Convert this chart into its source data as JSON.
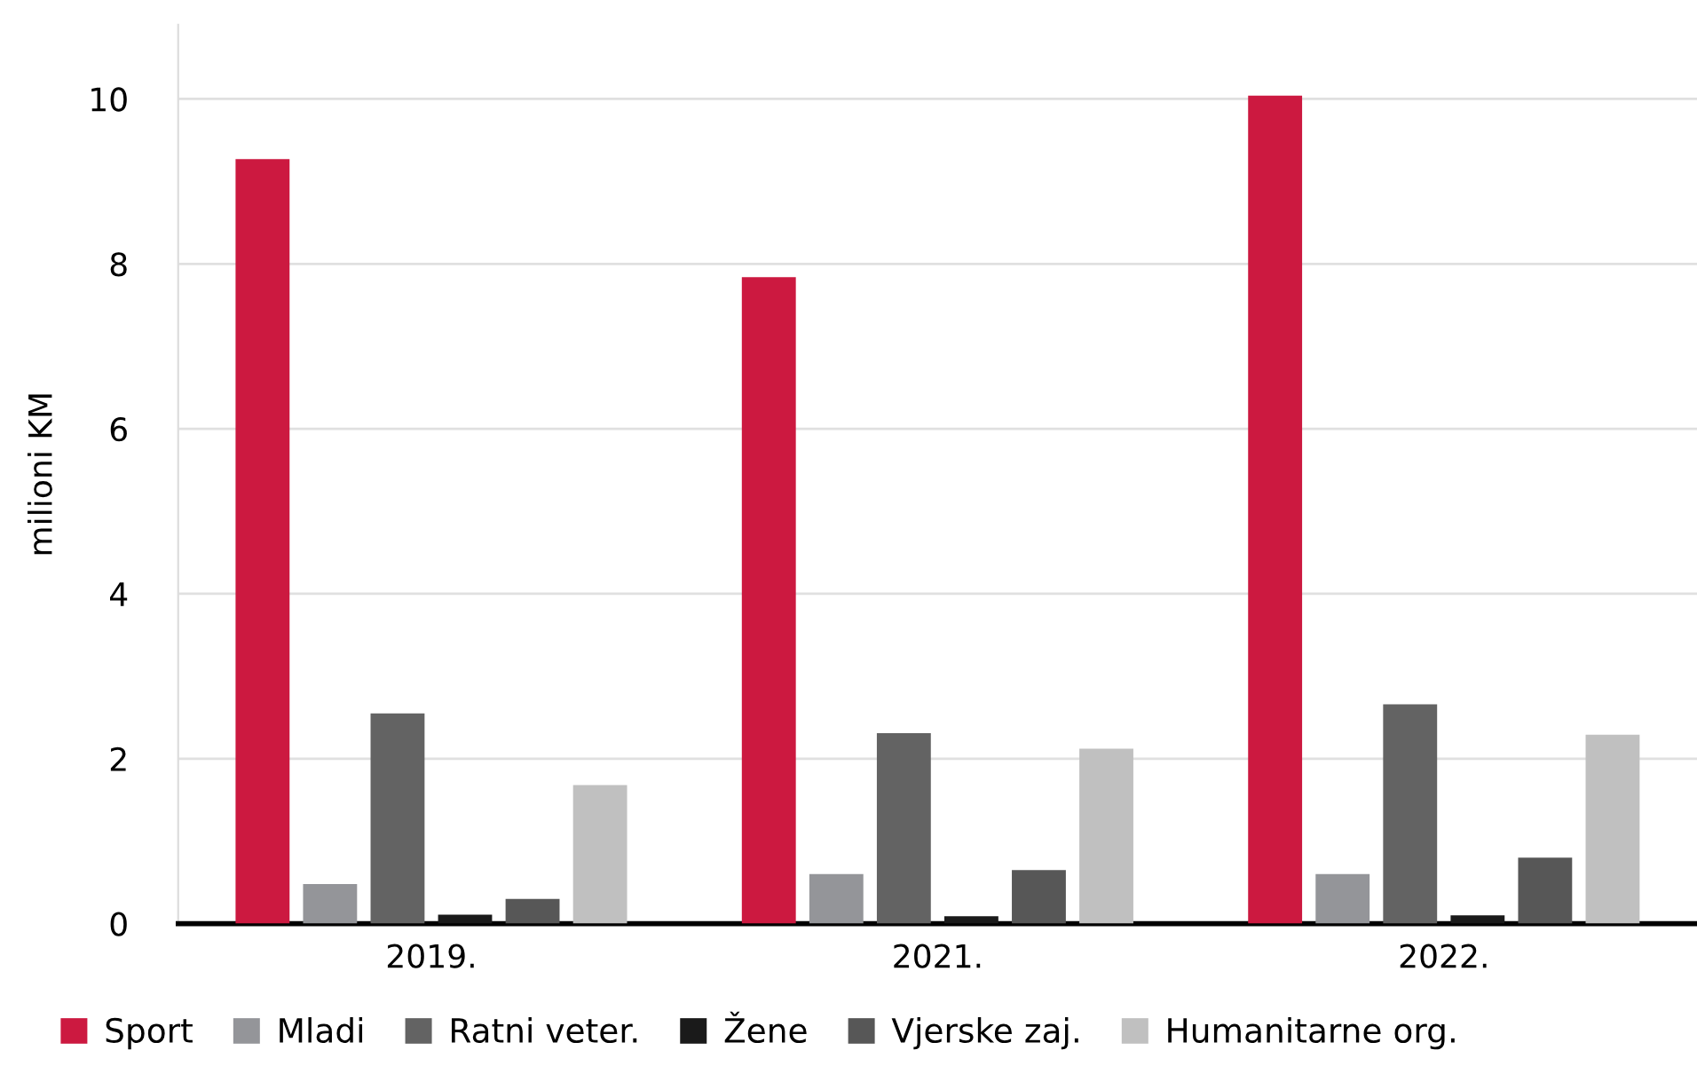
{
  "chart_data": {
    "type": "bar",
    "ylabel": "milioni KM",
    "categories": [
      "2019.",
      "2021.",
      "2022."
    ],
    "series": [
      {
        "name": "Sport",
        "color": "#cc1940",
        "values": [
          9.27,
          7.84,
          10.04
        ]
      },
      {
        "name": "Mladi",
        "color": "#949599",
        "values": [
          0.48,
          0.6,
          0.6
        ]
      },
      {
        "name": "Ratni veter.",
        "color": "#636363",
        "values": [
          2.55,
          2.31,
          2.66
        ]
      },
      {
        "name": "Žene",
        "color": "#1a1a1a",
        "values": [
          0.11,
          0.09,
          0.1
        ]
      },
      {
        "name": "Vjerske zaj.",
        "color": "#575757",
        "values": [
          0.3,
          0.65,
          0.8
        ]
      },
      {
        "name": "Humanitarne org.",
        "color": "#c0c0c0",
        "values": [
          1.68,
          2.12,
          2.29
        ]
      }
    ],
    "ylim": [
      0,
      10.9
    ],
    "yticks": [
      0,
      2,
      4,
      6,
      8,
      10
    ],
    "grid": "y",
    "legend": "bottom"
  }
}
